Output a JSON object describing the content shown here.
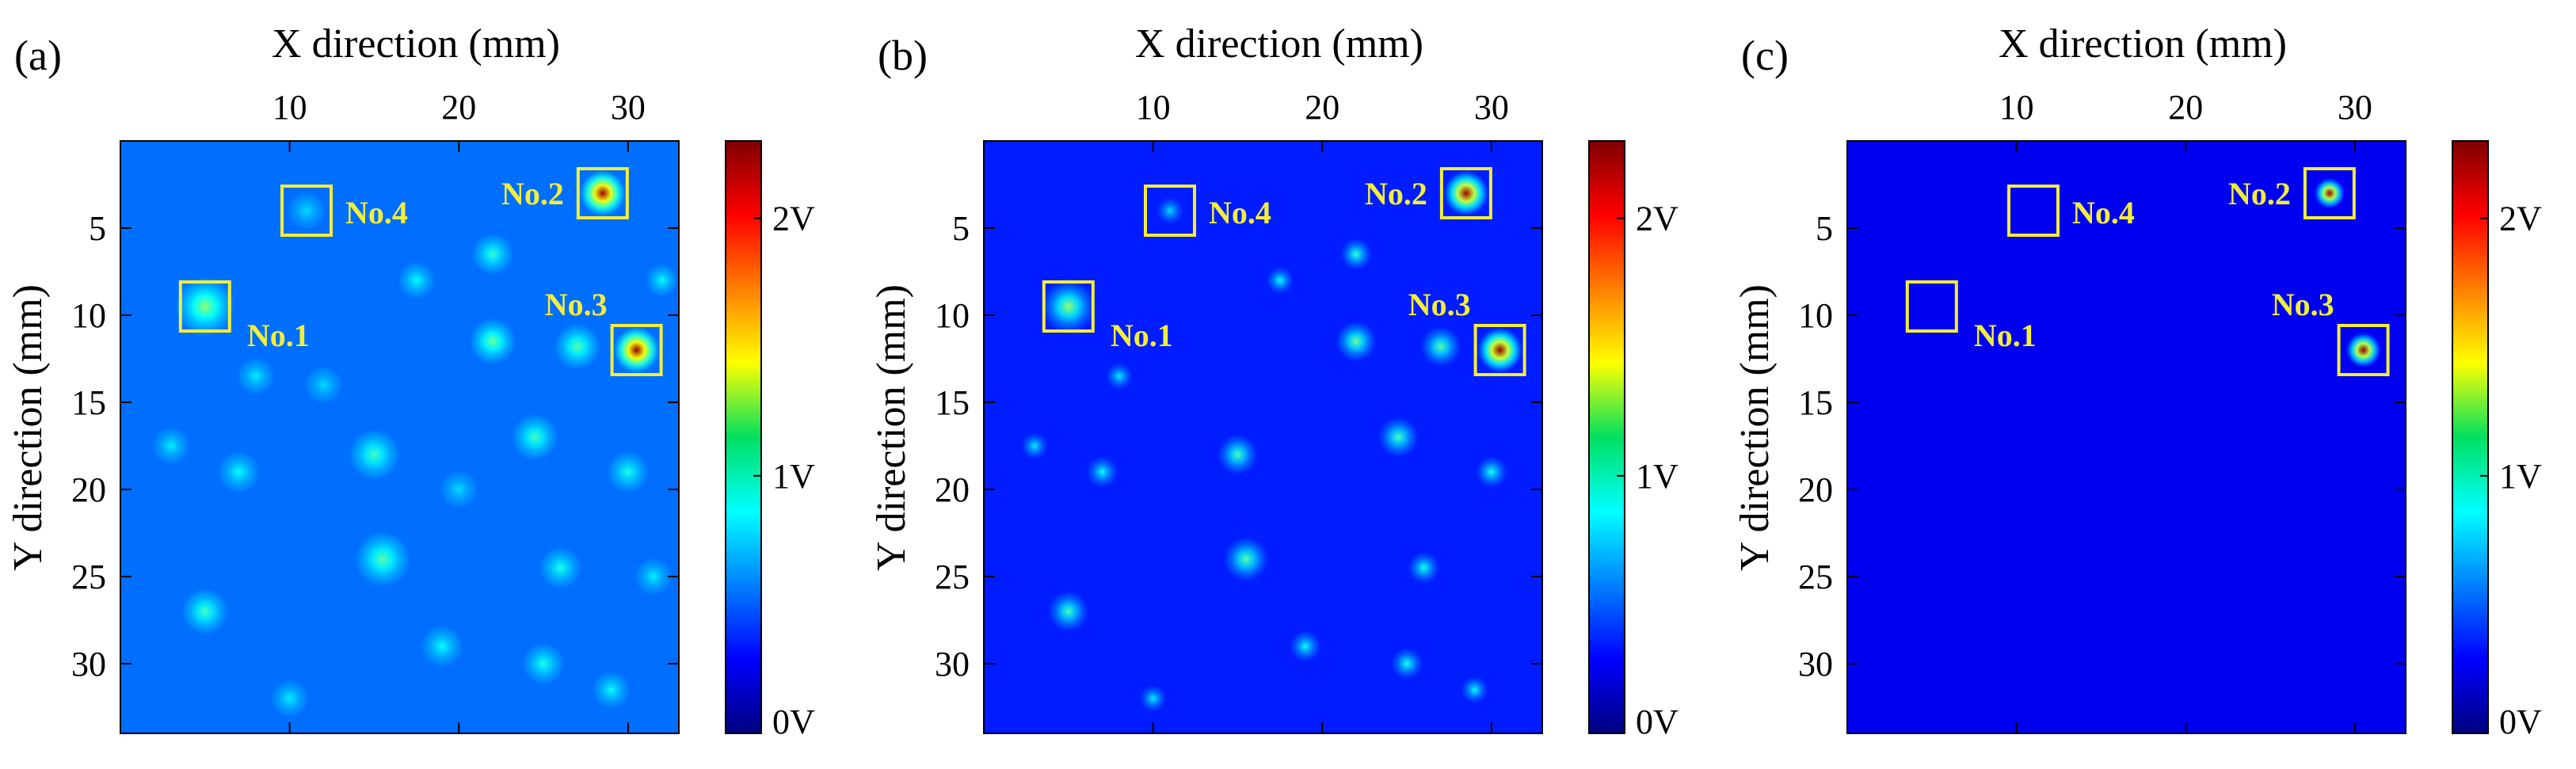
{
  "chart_data": [
    {
      "type": "heatmap",
      "panel_label": "(a)",
      "xlabel": "X direction (mm)",
      "ylabel": "Y direction (mm)",
      "x_ticks": [
        10,
        20,
        30
      ],
      "y_ticks": [
        5,
        10,
        15,
        20,
        25,
        30
      ],
      "xlim": [
        0,
        33
      ],
      "ylim": [
        0,
        34
      ],
      "colorbar": {
        "ticks": [
          "0V",
          "1V",
          "2V"
        ],
        "range": [
          0,
          2.3
        ],
        "unit": "V"
      },
      "markers": [
        {
          "label": "No.1",
          "x": 5,
          "y": 9.5
        },
        {
          "label": "No.2",
          "x": 28.5,
          "y": 3
        },
        {
          "label": "No.3",
          "x": 30.5,
          "y": 12
        },
        {
          "label": "No.4",
          "x": 11,
          "y": 4
        }
      ],
      "background_level": 0.35,
      "spots": [
        {
          "x": 5,
          "y": 9.5,
          "v": 1.05,
          "r": 1.3
        },
        {
          "x": 28.5,
          "y": 3,
          "v": 2.2,
          "r": 1.0
        },
        {
          "x": 30.5,
          "y": 12,
          "v": 2.25,
          "r": 1.0
        },
        {
          "x": 11,
          "y": 4,
          "v": 0.6,
          "r": 0.8
        },
        {
          "x": 22,
          "y": 11.5,
          "v": 0.95,
          "r": 1.0
        },
        {
          "x": 27,
          "y": 11.8,
          "v": 0.9,
          "r": 1.0
        },
        {
          "x": 15,
          "y": 18,
          "v": 0.85,
          "r": 1.1
        },
        {
          "x": 24.5,
          "y": 17,
          "v": 0.85,
          "r": 1.0
        },
        {
          "x": 15.5,
          "y": 24,
          "v": 0.9,
          "r": 1.2
        },
        {
          "x": 5,
          "y": 27,
          "v": 0.85,
          "r": 1.0
        },
        {
          "x": 30,
          "y": 19,
          "v": 0.75,
          "r": 0.9
        },
        {
          "x": 22,
          "y": 6.5,
          "v": 0.8,
          "r": 0.9
        },
        {
          "x": 7,
          "y": 19,
          "v": 0.7,
          "r": 0.9
        },
        {
          "x": 19,
          "y": 29,
          "v": 0.7,
          "r": 0.9
        },
        {
          "x": 25,
          "y": 30,
          "v": 0.75,
          "r": 0.9
        },
        {
          "x": 26,
          "y": 24.5,
          "v": 0.75,
          "r": 0.9
        },
        {
          "x": 29,
          "y": 31.5,
          "v": 0.7,
          "r": 0.8
        },
        {
          "x": 10,
          "y": 32,
          "v": 0.65,
          "r": 0.8
        },
        {
          "x": 3,
          "y": 17.5,
          "v": 0.65,
          "r": 0.8
        },
        {
          "x": 17.5,
          "y": 8,
          "v": 0.7,
          "r": 0.8
        },
        {
          "x": 12,
          "y": 14,
          "v": 0.6,
          "r": 0.8
        },
        {
          "x": 8,
          "y": 13.5,
          "v": 0.65,
          "r": 0.8
        },
        {
          "x": 32,
          "y": 8,
          "v": 0.7,
          "r": 0.7
        },
        {
          "x": 31.5,
          "y": 25,
          "v": 0.65,
          "r": 0.8
        },
        {
          "x": 20,
          "y": 20,
          "v": 0.6,
          "r": 0.8
        }
      ]
    },
    {
      "type": "heatmap",
      "panel_label": "(b)",
      "xlabel": "X direction (mm)",
      "ylabel": "Y direction (mm)",
      "x_ticks": [
        10,
        20,
        30
      ],
      "y_ticks": [
        5,
        10,
        15,
        20,
        25,
        30
      ],
      "xlim": [
        0,
        33
      ],
      "ylim": [
        0,
        34
      ],
      "colorbar": {
        "ticks": [
          "0V",
          "1V",
          "2V"
        ],
        "range": [
          0,
          2.3
        ],
        "unit": "V"
      },
      "markers": [
        {
          "label": "No.1",
          "x": 5,
          "y": 9.5
        },
        {
          "label": "No.2",
          "x": 28.5,
          "y": 3
        },
        {
          "label": "No.3",
          "x": 30.5,
          "y": 12
        },
        {
          "label": "No.4",
          "x": 11,
          "y": 4
        }
      ],
      "background_level": 0.12,
      "spots": [
        {
          "x": 5,
          "y": 9.5,
          "v": 1.05,
          "r": 1.2
        },
        {
          "x": 28.5,
          "y": 3,
          "v": 2.2,
          "r": 1.0
        },
        {
          "x": 30.5,
          "y": 12,
          "v": 2.25,
          "r": 1.0
        },
        {
          "x": 11,
          "y": 4,
          "v": 0.6,
          "r": 0.6
        },
        {
          "x": 22,
          "y": 11.5,
          "v": 0.95,
          "r": 0.9
        },
        {
          "x": 27,
          "y": 11.8,
          "v": 0.9,
          "r": 0.9
        },
        {
          "x": 15,
          "y": 18,
          "v": 0.85,
          "r": 0.9
        },
        {
          "x": 24.5,
          "y": 17,
          "v": 0.85,
          "r": 0.9
        },
        {
          "x": 15.5,
          "y": 24,
          "v": 0.9,
          "r": 1.0
        },
        {
          "x": 5,
          "y": 27,
          "v": 0.85,
          "r": 0.9
        },
        {
          "x": 30,
          "y": 19,
          "v": 0.75,
          "r": 0.7
        },
        {
          "x": 22,
          "y": 6.5,
          "v": 0.8,
          "r": 0.7
        },
        {
          "x": 7,
          "y": 19,
          "v": 0.7,
          "r": 0.7
        },
        {
          "x": 19,
          "y": 29,
          "v": 0.7,
          "r": 0.7
        },
        {
          "x": 25,
          "y": 30,
          "v": 0.75,
          "r": 0.7
        },
        {
          "x": 26,
          "y": 24.5,
          "v": 0.75,
          "r": 0.7
        },
        {
          "x": 29,
          "y": 31.5,
          "v": 0.7,
          "r": 0.6
        },
        {
          "x": 10,
          "y": 32,
          "v": 0.65,
          "r": 0.6
        },
        {
          "x": 3,
          "y": 17.5,
          "v": 0.65,
          "r": 0.6
        },
        {
          "x": 17.5,
          "y": 8,
          "v": 0.7,
          "r": 0.6
        },
        {
          "x": 8,
          "y": 13.5,
          "v": 0.65,
          "r": 0.6
        }
      ]
    },
    {
      "type": "heatmap",
      "panel_label": "(c)",
      "xlabel": "X direction (mm)",
      "ylabel": "Y direction (mm)",
      "x_ticks": [
        10,
        20,
        30
      ],
      "y_ticks": [
        5,
        10,
        15,
        20,
        25,
        30
      ],
      "xlim": [
        0,
        33
      ],
      "ylim": [
        0,
        34
      ],
      "colorbar": {
        "ticks": [
          "0V",
          "1V",
          "2V"
        ],
        "range": [
          0,
          2.3
        ],
        "unit": "V"
      },
      "markers": [
        {
          "label": "No.1",
          "x": 5,
          "y": 9.5
        },
        {
          "label": "No.2",
          "x": 28.5,
          "y": 3
        },
        {
          "label": "No.3",
          "x": 30.5,
          "y": 12
        },
        {
          "label": "No.4",
          "x": 11,
          "y": 4
        }
      ],
      "background_level": 0.0,
      "spots": [
        {
          "x": 28.5,
          "y": 3,
          "v": 2.2,
          "r": 0.7
        },
        {
          "x": 30.5,
          "y": 12,
          "v": 2.25,
          "r": 0.8
        }
      ]
    }
  ]
}
